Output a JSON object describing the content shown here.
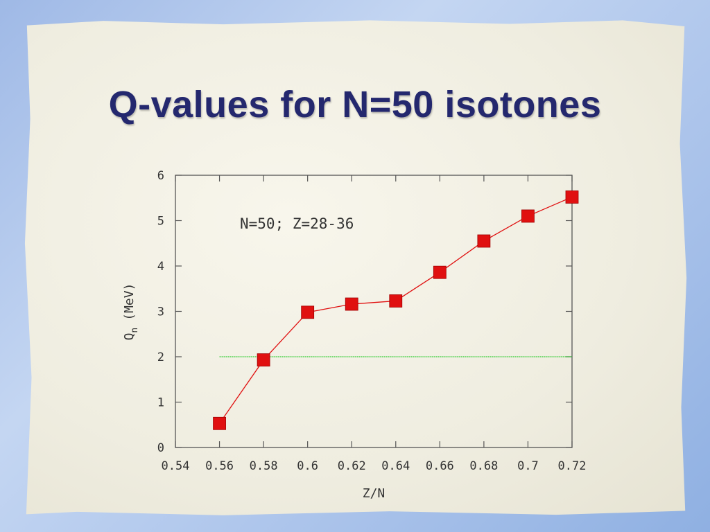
{
  "slide": {
    "title": "Q-values for N=50 isotones"
  },
  "chart_data": {
    "type": "line",
    "title": "",
    "annotation": "N=50; Z=28-36",
    "xlabel": "Z/N",
    "ylabel_main": "Q",
    "ylabel_sub": "n",
    "ylabel_unit": "(MeV)",
    "xlim": [
      0.54,
      0.72
    ],
    "ylim": [
      0,
      6
    ],
    "x_ticks": [
      0.54,
      0.56,
      0.58,
      0.6,
      0.62,
      0.64,
      0.66,
      0.68,
      0.7,
      0.72
    ],
    "x_tick_labels": [
      "0.54",
      "0.56",
      "0.58",
      "0.6",
      "0.62",
      "0.64",
      "0.66",
      "0.68",
      "0.7",
      "0.72"
    ],
    "y_ticks": [
      0,
      1,
      2,
      3,
      4,
      5,
      6
    ],
    "y_tick_labels": [
      "0",
      "1",
      "2",
      "3",
      "4",
      "5",
      "6"
    ],
    "grid": false,
    "series": [
      {
        "color": "#e01010",
        "marker": "square",
        "x": [
          0.56,
          0.58,
          0.6,
          0.62,
          0.64,
          0.66,
          0.68,
          0.7,
          0.72
        ],
        "y": [
          0.53,
          1.93,
          2.98,
          3.16,
          3.23,
          3.86,
          4.55,
          5.1,
          5.52
        ]
      }
    ],
    "reference_line": {
      "color": "#33cc33",
      "x": [
        0.56,
        0.72
      ],
      "y": 2
    }
  }
}
